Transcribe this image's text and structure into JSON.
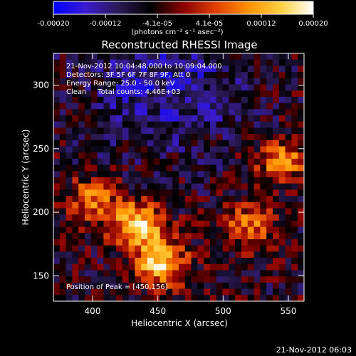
{
  "chart_data": {
    "type": "heatmap",
    "title": "Reconstructed RHESSI Image",
    "xlabel": "Heliocentric X (arcsec)",
    "ylabel": "Heliocentric Y (arcsec)",
    "xlim": [
      370,
      562
    ],
    "ylim": [
      130,
      325
    ],
    "xticks": [
      400,
      450,
      500,
      550
    ],
    "yticks": [
      150,
      200,
      250,
      300
    ],
    "colorbar": {
      "min": -0.0002,
      "max": 0.0002,
      "ticks": [
        "-0.00020",
        "-0.00012",
        "-4.1e-05",
        "4.1e-05",
        "0.00012",
        "0.00020"
      ],
      "units": "(photons cm⁻² s⁻¹ asec⁻²)",
      "palette": [
        "#0000ff",
        "#3a1bd0",
        "#2a1a55",
        "#000000",
        "#8a0000",
        "#e04000",
        "#ff9000",
        "#ffd040",
        "#ffffff"
      ]
    },
    "annotations": [
      "21-Nov-2012 10:04:48.000 to 10:09:04.000",
      "Detectors: 3F 5F 6F 7F 8F 9F, Att 0",
      "Energy Range: 25.0 - 50.0 keV",
      "Clean     Total counts: 4.46E+03"
    ],
    "peak_label": "Position of Peak = [450,156]",
    "peak": [
      450,
      156
    ],
    "sources": [
      {
        "x": 435,
        "y": 190,
        "level": 0.0002
      },
      {
        "x": 452,
        "y": 160,
        "level": 0.00019
      },
      {
        "x": 400,
        "y": 210,
        "level": 0.00012
      },
      {
        "x": 545,
        "y": 240,
        "level": 0.00013
      },
      {
        "x": 520,
        "y": 190,
        "level": 0.00011
      }
    ]
  },
  "footer_date": "21-Nov-2012 06:03"
}
